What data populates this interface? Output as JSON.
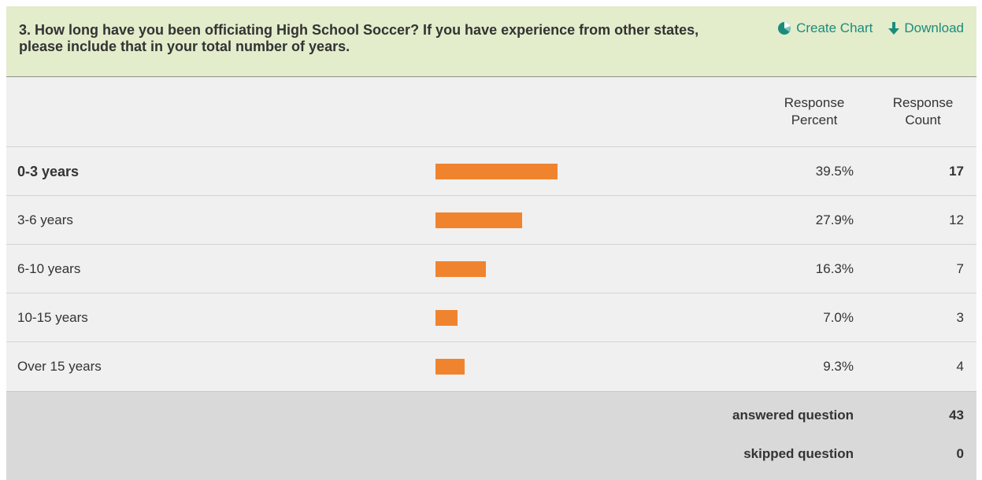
{
  "question": {
    "text": "3. How long have you been officiating High School Soccer? If you have experience from other states, please include that in your total number of years."
  },
  "actions": {
    "create_chart_label": "Create Chart",
    "create_chart_icon": "pie-chart-icon",
    "download_label": "Download",
    "download_icon": "arrow-down-icon"
  },
  "columns": {
    "percent_header": "Response Percent",
    "count_header": "Response Count"
  },
  "rows": [
    {
      "label": "0-3 years",
      "percent": "39.5%",
      "count": "17",
      "fraction": 0.395
    },
    {
      "label": "3-6 years",
      "percent": "27.9%",
      "count": "12",
      "fraction": 0.279
    },
    {
      "label": "6-10 years",
      "percent": "16.3%",
      "count": "7",
      "fraction": 0.163
    },
    {
      "label": "10-15 years",
      "percent": "7.0%",
      "count": "3",
      "fraction": 0.07
    },
    {
      "label": "Over 15 years",
      "percent": "9.3%",
      "count": "4",
      "fraction": 0.093
    }
  ],
  "summary": {
    "answered_label": "answered question",
    "answered_value": "43",
    "skipped_label": "skipped question",
    "skipped_value": "0"
  },
  "colors": {
    "bar": "#f0842e",
    "header_bg": "#e3eccb",
    "link": "#1b8c7c"
  }
}
